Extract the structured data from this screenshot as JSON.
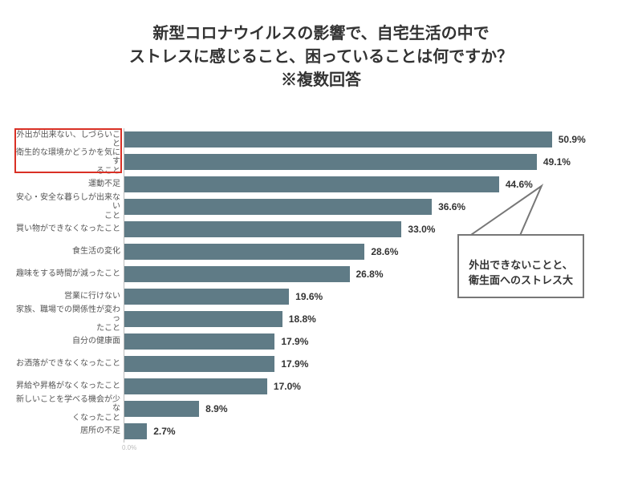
{
  "title": {
    "line1": "新型コロナウイルスの影響で、自宅生活の中で",
    "line2": "ストレスに感じること、困っていることは何ですか？",
    "line3": "※複数回答",
    "fontsize": 20,
    "color": "#333333"
  },
  "chart": {
    "type": "bar-horizontal",
    "xmax": 60,
    "bar_color": "#5f7b86",
    "value_suffix": "%",
    "label_fontsize": 10,
    "value_fontsize": 12,
    "axis_zero_label": "0.0%",
    "items": [
      {
        "label": "外出が出来ない、しづらいこと",
        "value": 50.9
      },
      {
        "label": "衛生的な環境かどうかを気にす\nること",
        "value": 49.1
      },
      {
        "label": "運動不足",
        "value": 44.6
      },
      {
        "label": "安心・安全な暮らしが出来ない\nこと",
        "value": 36.6
      },
      {
        "label": "買い物ができなくなったこと",
        "value": 33.0
      },
      {
        "label": "食生活の変化",
        "value": 28.6
      },
      {
        "label": "趣味をする時間が減ったこと",
        "value": 26.8
      },
      {
        "label": "営業に行けない",
        "value": 19.6
      },
      {
        "label": "家族、職場での関係性が変わっ\nたこと",
        "value": 18.8
      },
      {
        "label": "自分の健康面",
        "value": 17.9
      },
      {
        "label": "お洒落ができなくなったこと",
        "value": 17.9
      },
      {
        "label": "昇給や昇格がなくなったこと",
        "value": 17.0
      },
      {
        "label": "新しいことを学べる機会が少な\nくなったこと",
        "value": 8.9
      },
      {
        "label": "居所の不足",
        "value": 2.7
      }
    ]
  },
  "highlight": {
    "border_color": "#d93025",
    "rows_start": 0,
    "rows_end": 1
  },
  "callout": {
    "text": "外出できないことと、\n衛生面へのストレス大",
    "border_color": "#777777",
    "fontsize": 13
  },
  "colors": {
    "background": "#ffffff",
    "axis": "#bbbbbb"
  }
}
